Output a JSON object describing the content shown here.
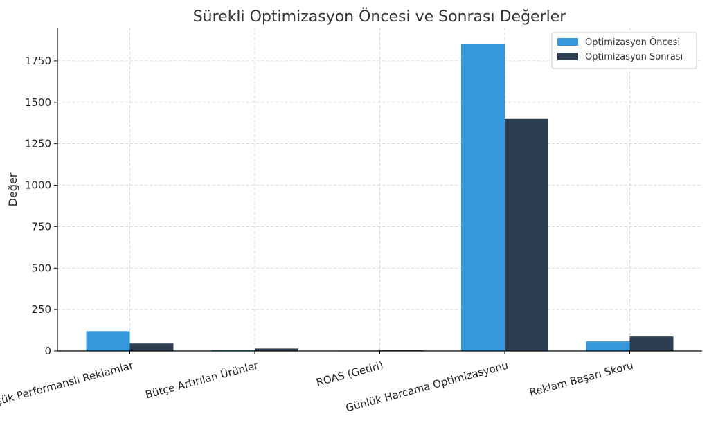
{
  "chart_data": {
    "type": "bar",
    "title": "Sürekli Optimizasyon Öncesi ve Sonrası Değerler",
    "xlabel": "",
    "ylabel": "Değer",
    "categories": [
      "Düşük Performanslı Reklamlar",
      "Bütçe Artırılan Ürünler",
      "ROAS (Getiri)",
      "Günlük Harcama Optimizasyonu",
      "Reklam Başarı Skoru"
    ],
    "series": [
      {
        "name": "Optimizasyon Öncesi",
        "color": "#3498db",
        "values": [
          120,
          5,
          2.5,
          1850,
          58
        ]
      },
      {
        "name": "Optimizasyon Sonrası",
        "color": "#2c3e50",
        "values": [
          45,
          15,
          4,
          1400,
          87
        ]
      }
    ],
    "ylim": [
      0,
      1950
    ],
    "yticks": [
      0,
      250,
      500,
      750,
      1000,
      1250,
      1500,
      1750
    ],
    "grid": true,
    "legend_position": "top-right"
  }
}
